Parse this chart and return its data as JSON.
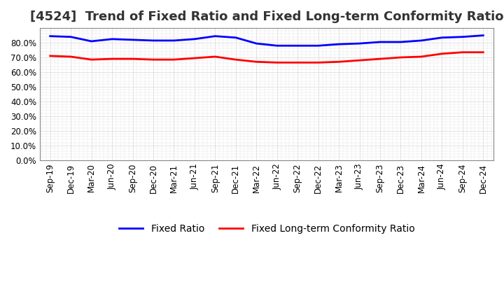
{
  "title": "[4524]  Trend of Fixed Ratio and Fixed Long-term Conformity Ratio",
  "x_labels": [
    "Sep-19",
    "Dec-19",
    "Mar-20",
    "Jun-20",
    "Sep-20",
    "Dec-20",
    "Mar-21",
    "Jun-21",
    "Sep-21",
    "Dec-21",
    "Mar-22",
    "Jun-22",
    "Sep-22",
    "Dec-22",
    "Mar-23",
    "Jun-23",
    "Sep-23",
    "Dec-23",
    "Mar-24",
    "Jun-24",
    "Sep-24",
    "Dec-24"
  ],
  "fixed_ratio": [
    84.5,
    84.0,
    81.0,
    82.5,
    82.0,
    81.5,
    81.5,
    82.5,
    84.5,
    83.5,
    79.5,
    78.0,
    78.0,
    78.0,
    79.0,
    79.5,
    80.5,
    80.5,
    81.5,
    83.5,
    84.0,
    85.0
  ],
  "fixed_lt_ratio": [
    71.0,
    70.5,
    68.5,
    69.0,
    69.0,
    68.5,
    68.5,
    69.5,
    70.5,
    68.5,
    67.0,
    66.5,
    66.5,
    66.5,
    67.0,
    68.0,
    69.0,
    70.0,
    70.5,
    72.5,
    73.5,
    73.5
  ],
  "fixed_ratio_color": "#0000FF",
  "fixed_lt_ratio_color": "#FF0000",
  "ylim_min": 0,
  "ylim_max": 90,
  "yticks": [
    0,
    10,
    20,
    30,
    40,
    50,
    60,
    70,
    80
  ],
  "background_color": "#FFFFFF",
  "plot_bg_color": "#FFFFFF",
  "grid_color": "#AAAAAA",
  "legend_fixed_ratio": "Fixed Ratio",
  "legend_fixed_lt_ratio": "Fixed Long-term Conformity Ratio",
  "title_fontsize": 13,
  "axis_fontsize": 8.5,
  "legend_fontsize": 10,
  "line_width": 2.0
}
